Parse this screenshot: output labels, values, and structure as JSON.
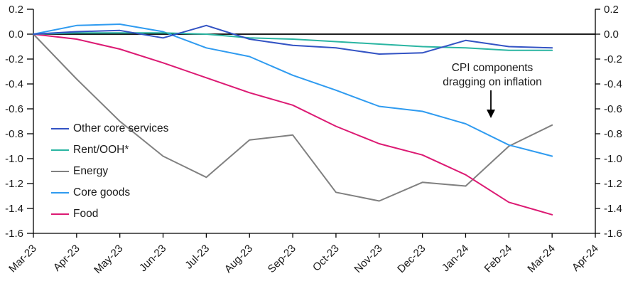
{
  "chart_data": {
    "type": "line",
    "title": "",
    "xlabel": "",
    "ylabel": "",
    "ylim": [
      -1.6,
      0.2
    ],
    "grid": false,
    "zero_line": true,
    "legend_position": "middle-left",
    "x_tick_labels": [
      "Mar-23",
      "Apr-23",
      "May-23",
      "Jun-23",
      "Jul-23",
      "Aug-23",
      "Sep-23",
      "Oct-23",
      "Nov-23",
      "Dec-23",
      "Jan-24",
      "Feb-24",
      "Mar-24",
      "Apr-24"
    ],
    "y_tick_labels": [
      "0.2",
      "0.0",
      "-0.2",
      "-0.4",
      "-0.6",
      "-0.8",
      "-1.0",
      "-1.2",
      "-1.4",
      "-1.6"
    ],
    "categories": [
      "Mar-23",
      "Apr-23",
      "May-23",
      "Jun-23",
      "Jul-23",
      "Aug-23",
      "Sep-23",
      "Oct-23",
      "Nov-23",
      "Dec-23",
      "Jan-24",
      "Feb-24",
      "Mar-24"
    ],
    "series": [
      {
        "name": "Other core services",
        "color": "#3353c4",
        "values": [
          0.0,
          0.02,
          0.03,
          -0.03,
          0.07,
          -0.04,
          -0.09,
          -0.11,
          -0.16,
          -0.15,
          -0.05,
          -0.1,
          -0.11
        ]
      },
      {
        "name": "Rent/OOH*",
        "color": "#2ab5a2",
        "values": [
          0.0,
          0.01,
          0.01,
          0.01,
          0.0,
          -0.03,
          -0.04,
          -0.06,
          -0.08,
          -0.1,
          -0.11,
          -0.13,
          -0.13
        ]
      },
      {
        "name": "Energy",
        "color": "#808080",
        "values": [
          0.0,
          -0.36,
          -0.7,
          -0.98,
          -1.15,
          -0.85,
          -0.81,
          -1.27,
          -1.34,
          -1.19,
          -1.22,
          -0.9,
          -0.73
        ]
      },
      {
        "name": "Core goods",
        "color": "#2f9bf0",
        "values": [
          0.0,
          0.07,
          0.08,
          0.02,
          -0.11,
          -0.18,
          -0.33,
          -0.45,
          -0.58,
          -0.62,
          -0.72,
          -0.89,
          -0.98
        ]
      },
      {
        "name": "Food",
        "color": "#dc1a73",
        "values": [
          0.0,
          -0.04,
          -0.12,
          -0.23,
          -0.35,
          -0.47,
          -0.57,
          -0.74,
          -0.88,
          -0.97,
          -1.13,
          -1.35,
          -1.45
        ]
      }
    ],
    "annotation": {
      "line1": "CPI components",
      "line2": "dragging on inflation"
    }
  }
}
